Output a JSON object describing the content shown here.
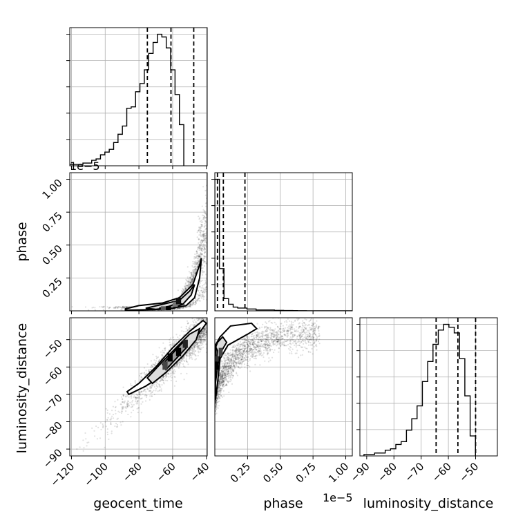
{
  "chart_data": {
    "type": "corner",
    "parameters": [
      "geocent_time",
      "phase",
      "luminosity_distance"
    ],
    "offset_labels": {
      "phase_y": "1e−5",
      "phase_x": "1e−5"
    },
    "ranges": {
      "geocent_time": [
        -121,
        -39.5
      ],
      "phase": [
        0,
        1.05
      ],
      "luminosity_distance": [
        -92.5,
        -42
      ]
    },
    "ticks": {
      "geocent_time": [
        {
          "v": -120,
          "label": "−120"
        },
        {
          "v": -100,
          "label": "−100"
        },
        {
          "v": -80,
          "label": "−80"
        },
        {
          "v": -60,
          "label": "−60"
        },
        {
          "v": -40,
          "label": "−40"
        }
      ],
      "phase": [
        {
          "v": 0.25,
          "label": "0.25"
        },
        {
          "v": 0.5,
          "label": "0.50"
        },
        {
          "v": 0.75,
          "label": "0.75"
        },
        {
          "v": 1.0,
          "label": "1.00"
        }
      ],
      "luminosity_distance": [
        {
          "v": -90,
          "label": "−90"
        },
        {
          "v": -80,
          "label": "−80"
        },
        {
          "v": -70,
          "label": "−70"
        },
        {
          "v": -60,
          "label": "−60"
        },
        {
          "v": -50,
          "label": "−50"
        }
      ]
    },
    "quantiles": {
      "geocent_time": [
        -75,
        -61,
        -47.5
      ],
      "phase": [
        0.02,
        0.065,
        0.23
      ],
      "luminosity_distance": [
        -64.5,
        -56.5,
        -50
      ]
    },
    "histograms": {
      "geocent_time": {
        "bin_start": -121,
        "bin_width": 2.6,
        "counts": [
          1,
          1,
          1,
          2,
          2,
          4,
          5,
          8,
          10,
          12,
          17,
          23,
          29,
          42,
          43,
          54,
          60,
          70,
          82,
          90,
          96,
          94,
          86,
          70,
          52,
          30
        ]
      },
      "phase": {
        "bin_start": 0,
        "bin_width": 0.035,
        "counts": [
          140,
          45,
          13,
          7,
          4,
          3,
          3,
          2,
          2,
          1,
          1,
          1,
          1,
          0.5,
          0.5,
          0.3,
          0.3,
          0.2,
          0.1,
          0.1,
          0,
          0,
          0,
          0,
          0,
          0,
          0,
          0,
          0,
          0
        ]
      },
      "luminosity_distance": {
        "bin_start": -91,
        "bin_width": 1.95,
        "counts": [
          1,
          1,
          2,
          2,
          4,
          5,
          8,
          10,
          18,
          26,
          35,
          52,
          66,
          78,
          88,
          92,
          90,
          86,
          68,
          42,
          14
        ]
      }
    }
  }
}
